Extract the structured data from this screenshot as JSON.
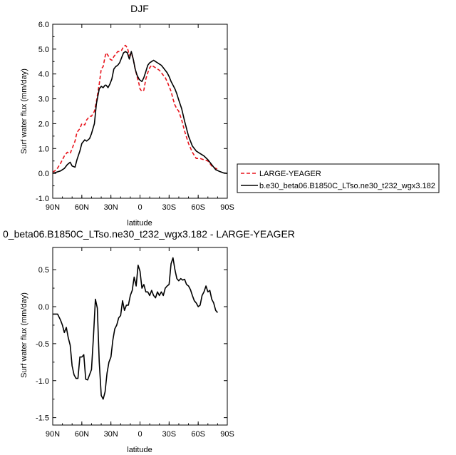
{
  "chart_data": [
    {
      "type": "line",
      "title": "DJF",
      "xlabel": "latitude",
      "ylabel": "Surf water flux (mm/day)",
      "xlim": [
        90,
        -90
      ],
      "ylim": [
        -1.0,
        6.0
      ],
      "xticks": [
        90,
        60,
        30,
        0,
        -30,
        -60,
        -90
      ],
      "xtick_labels": [
        "90N",
        "60N",
        "30N",
        "0",
        "30S",
        "60S",
        "90S"
      ],
      "yticks": [
        -1,
        0,
        1,
        2,
        3,
        4,
        5,
        6
      ],
      "ytick_labels": [
        "-1.0",
        "0.0",
        "1.0",
        "2.0",
        "3.0",
        "4.0",
        "5.0",
        "6.0"
      ],
      "legend_position": "outside-right",
      "series": [
        {
          "name": "LARGE-YEAGER",
          "color": "#e8131b",
          "dash": "dashed",
          "x": [
            90,
            86,
            82,
            78,
            75,
            72,
            70,
            67,
            65,
            62,
            60,
            57,
            55,
            52,
            50,
            47,
            45,
            42,
            40,
            38,
            36,
            35,
            33,
            31,
            29,
            27,
            25,
            23,
            21,
            19,
            17,
            15,
            13,
            11,
            9,
            7,
            5,
            3,
            1,
            0,
            -2,
            -4,
            -6,
            -8,
            -10,
            -12,
            -14,
            -16,
            -18,
            -20,
            -22,
            -24,
            -26,
            -28,
            -30,
            -32,
            -34,
            -36,
            -38,
            -40,
            -43,
            -46,
            -50,
            -54,
            -58,
            -62,
            -66,
            -70,
            -74,
            -78,
            -80
          ],
          "y": [
            0.05,
            0.15,
            0.4,
            0.7,
            0.85,
            0.8,
            1.0,
            1.3,
            1.65,
            1.8,
            2.0,
            1.95,
            2.15,
            2.3,
            2.3,
            2.5,
            2.9,
            3.6,
            4.2,
            4.3,
            4.7,
            4.85,
            4.75,
            4.6,
            4.55,
            4.7,
            4.8,
            4.9,
            4.9,
            4.95,
            5.1,
            5.15,
            5.05,
            4.75,
            4.85,
            4.6,
            4.2,
            3.9,
            3.6,
            3.4,
            3.3,
            3.35,
            3.8,
            4.05,
            4.25,
            4.35,
            4.3,
            4.25,
            4.2,
            4.15,
            4.05,
            3.95,
            3.85,
            3.7,
            3.5,
            3.3,
            3.0,
            2.75,
            2.6,
            2.5,
            2.15,
            1.7,
            1.2,
            0.85,
            0.6,
            0.6,
            0.55,
            0.5,
            0.3,
            0.2,
            0.18
          ]
        },
        {
          "name": "b.e30_beta06.B1850C_LTso.ne30_t232_wgx3.182",
          "color": "#000000",
          "dash": "solid",
          "x": [
            90,
            86,
            82,
            78,
            75,
            72,
            70,
            67,
            65,
            62,
            60,
            57,
            55,
            52,
            50,
            47,
            45,
            42,
            40,
            38,
            36,
            35,
            33,
            31,
            29,
            27,
            25,
            23,
            21,
            19,
            17,
            15,
            13,
            11,
            9,
            7,
            5,
            3,
            1,
            0,
            -2,
            -4,
            -6,
            -8,
            -10,
            -12,
            -14,
            -16,
            -18,
            -20,
            -22,
            -24,
            -26,
            -28,
            -30,
            -32,
            -34,
            -36,
            -38,
            -40,
            -43,
            -46,
            -50,
            -54,
            -58,
            -62,
            -66,
            -70,
            -74,
            -78,
            -82,
            -86,
            -90
          ],
          "y": [
            0.0,
            0.05,
            0.1,
            0.2,
            0.35,
            0.45,
            0.3,
            0.25,
            0.55,
            0.9,
            1.2,
            1.35,
            1.3,
            1.4,
            1.6,
            2.0,
            2.8,
            3.4,
            3.5,
            3.45,
            3.55,
            3.55,
            3.45,
            3.6,
            3.8,
            4.2,
            4.3,
            4.35,
            4.45,
            4.65,
            4.85,
            4.9,
            4.85,
            4.6,
            4.9,
            4.6,
            4.2,
            3.95,
            3.8,
            3.75,
            3.7,
            3.85,
            4.1,
            4.35,
            4.45,
            4.5,
            4.55,
            4.5,
            4.45,
            4.4,
            4.35,
            4.25,
            4.15,
            4.05,
            3.9,
            3.7,
            3.55,
            3.4,
            3.2,
            2.95,
            2.6,
            2.1,
            1.5,
            1.1,
            0.9,
            0.8,
            0.7,
            0.55,
            0.35,
            0.15,
            0.08,
            0.02,
            0.0
          ]
        }
      ]
    },
    {
      "type": "line",
      "title": "0_beta06.B1850C_LTso.ne30_t232_wgx3.182 - LARGE-YEAGER",
      "xlabel": "latitude",
      "ylabel": "Surf water flux (mm/day)",
      "xlim": [
        90,
        -90
      ],
      "ylim": [
        -1.6,
        0.8
      ],
      "xticks": [
        90,
        60,
        30,
        0,
        -30,
        -60,
        -90
      ],
      "xtick_labels": [
        "90N",
        "60N",
        "30N",
        "0",
        "30S",
        "60S",
        "90S"
      ],
      "yticks": [
        -1.5,
        -1.0,
        -0.5,
        0.0,
        0.5
      ],
      "ytick_labels": [
        "-1.5",
        "-1.0",
        "-0.5",
        "0.0",
        "0.5"
      ],
      "series": [
        {
          "color": "#000000",
          "dash": "solid",
          "x": [
            90,
            85,
            82,
            80,
            78,
            76,
            74,
            72,
            70,
            68,
            66,
            64,
            62,
            60,
            58,
            56,
            54,
            52,
            50,
            48,
            46,
            44,
            42,
            40,
            38,
            36,
            34,
            32,
            30,
            28,
            26,
            24,
            22,
            20,
            18,
            16,
            14,
            12,
            10,
            8,
            6,
            4,
            2,
            0,
            -2,
            -4,
            -6,
            -8,
            -10,
            -12,
            -14,
            -16,
            -18,
            -20,
            -22,
            -24,
            -26,
            -28,
            -30,
            -32,
            -34,
            -36,
            -38,
            -40,
            -42,
            -44,
            -46,
            -48,
            -50,
            -52,
            -54,
            -56,
            -58,
            -60,
            -62,
            -64,
            -66,
            -68,
            -70,
            -72,
            -74,
            -76,
            -78,
            -80
          ],
          "y": [
            -0.1,
            -0.1,
            -0.18,
            -0.25,
            -0.35,
            -0.28,
            -0.42,
            -0.52,
            -0.8,
            -0.92,
            -0.97,
            -0.97,
            -0.68,
            -0.68,
            -0.65,
            -0.98,
            -0.99,
            -0.92,
            -0.85,
            -0.4,
            0.1,
            -0.02,
            -0.75,
            -1.2,
            -1.25,
            -1.15,
            -0.9,
            -0.75,
            -0.68,
            -0.45,
            -0.3,
            -0.25,
            -0.15,
            -0.12,
            0.08,
            -0.05,
            0.02,
            0.02,
            0.15,
            0.22,
            0.4,
            0.28,
            0.56,
            0.48,
            0.25,
            0.3,
            0.2,
            0.2,
            0.15,
            0.22,
            0.15,
            0.12,
            0.2,
            0.15,
            0.2,
            0.15,
            0.25,
            0.28,
            0.3,
            0.58,
            0.66,
            0.5,
            0.38,
            0.35,
            0.38,
            0.36,
            0.37,
            0.3,
            0.28,
            0.23,
            0.15,
            0.08,
            0.05,
            0.0,
            0.02,
            0.15,
            0.2,
            0.28,
            0.2,
            0.22,
            0.1,
            0.05,
            -0.05,
            -0.08
          ]
        }
      ]
    }
  ]
}
